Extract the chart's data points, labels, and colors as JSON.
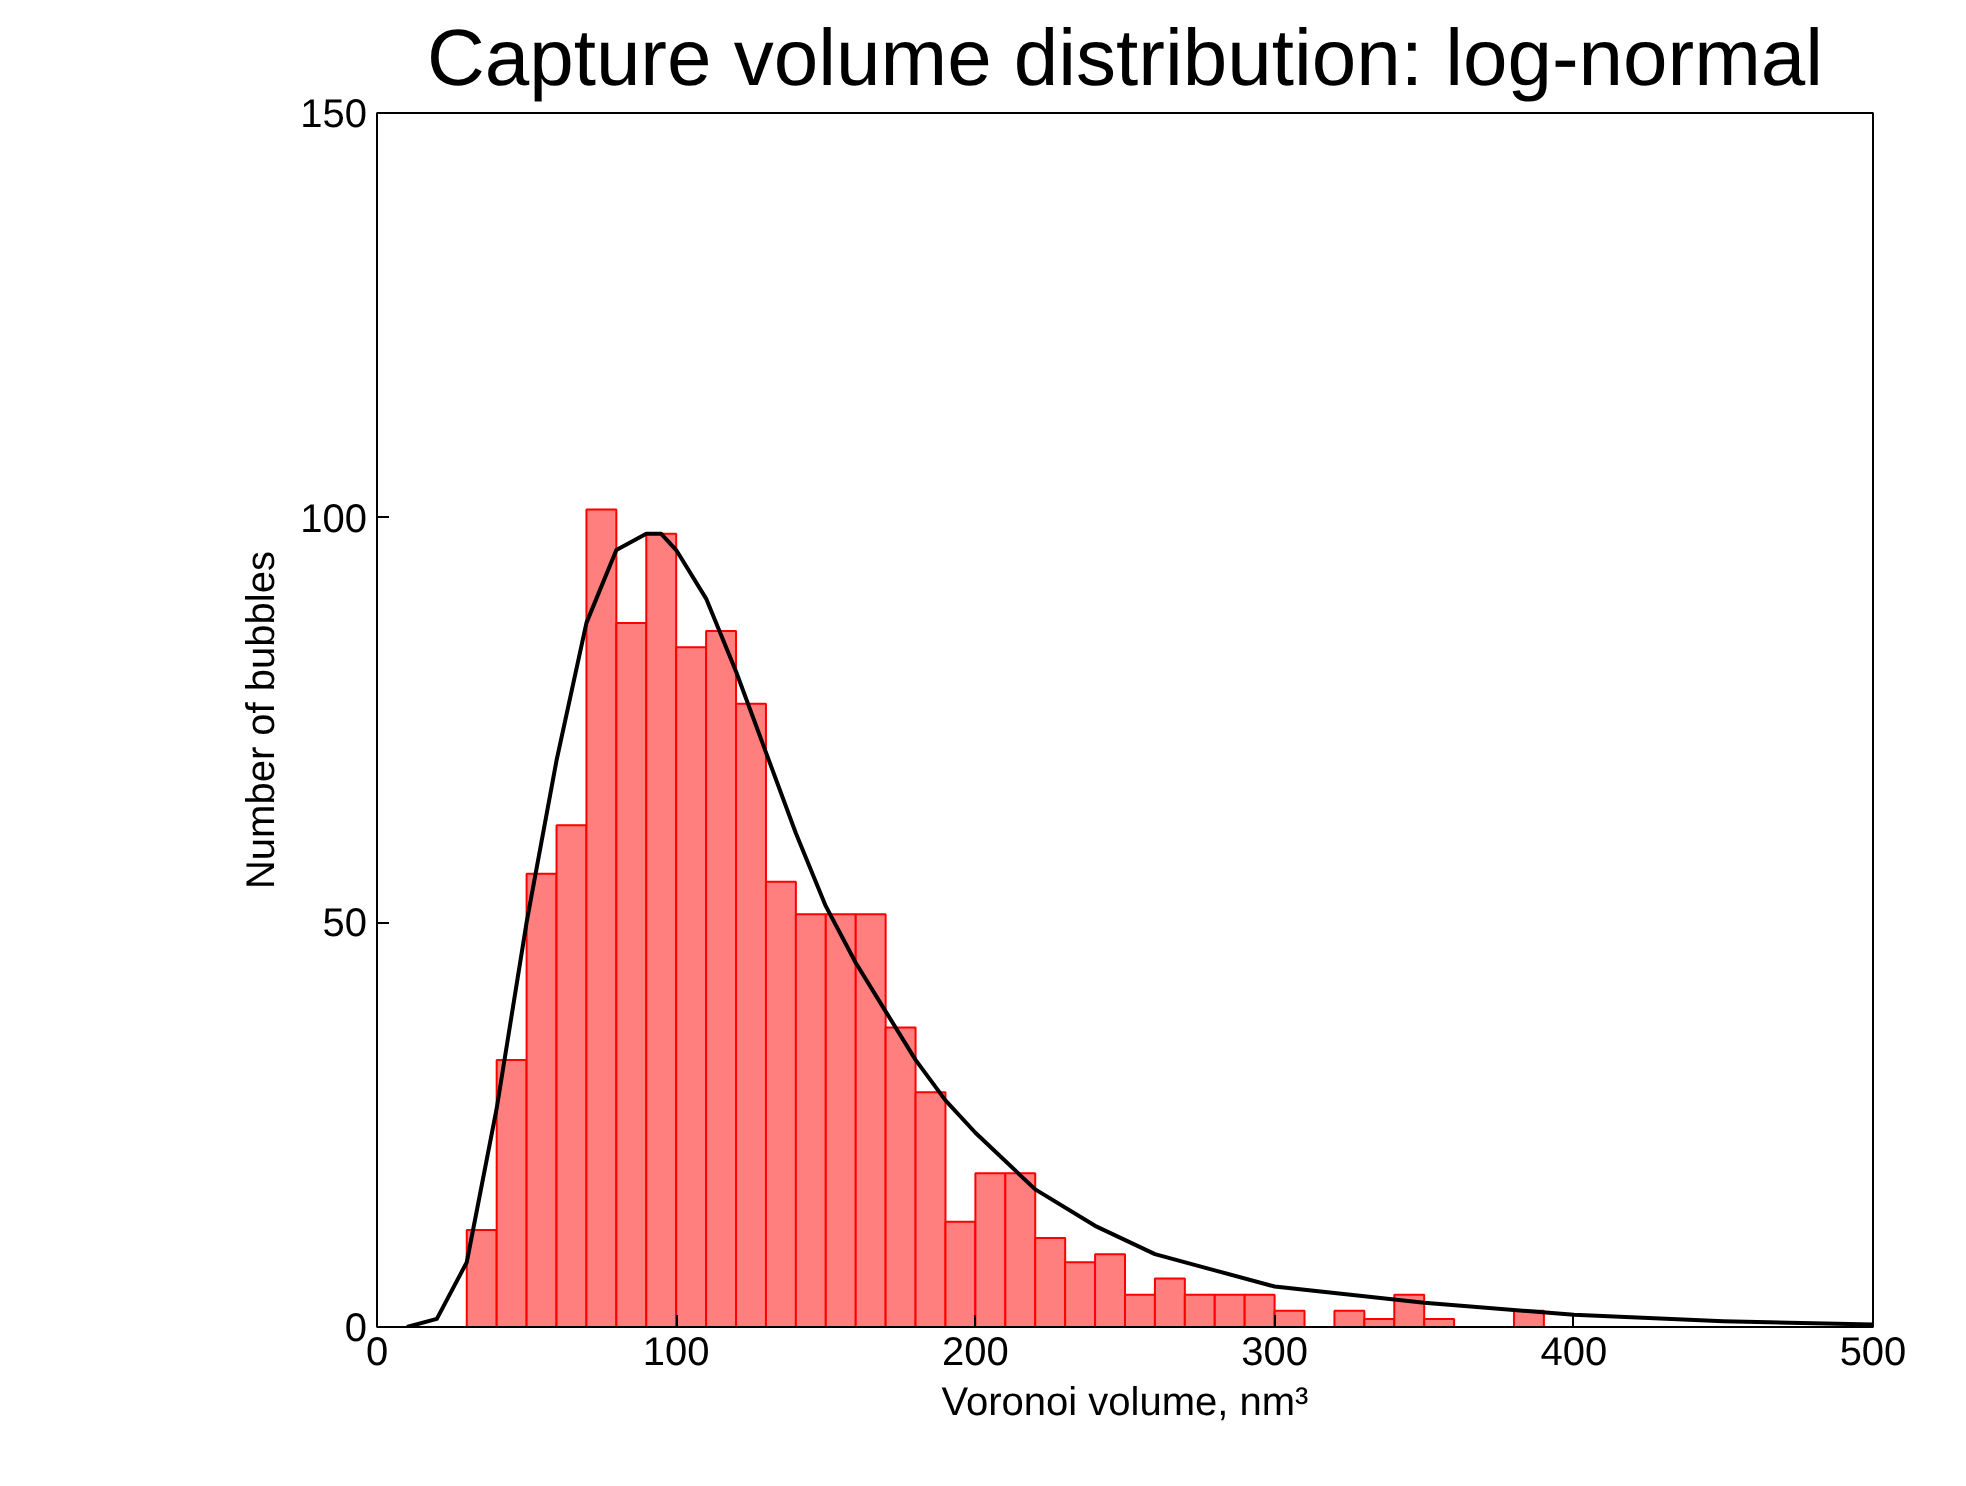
{
  "chart_data": {
    "type": "histogram",
    "title": "Capture volume distribution: log-normal",
    "xlabel": "Voronoi volume, nm³",
    "ylabel": "Number of bubbles",
    "bins": [
      30,
      40,
      50,
      60,
      70,
      80,
      90,
      100,
      110,
      120,
      130,
      140,
      150,
      160,
      170,
      180,
      190,
      200,
      210,
      220,
      230,
      240,
      250,
      260,
      270,
      280,
      290,
      300,
      310,
      320,
      330,
      340,
      350,
      360,
      370,
      380,
      390
    ],
    "values": [
      12,
      33,
      56,
      62,
      101,
      87,
      98,
      84,
      86,
      77,
      55,
      51,
      51,
      51,
      37,
      29,
      13,
      19,
      19,
      11,
      8,
      9,
      4,
      6,
      4,
      4,
      4,
      2,
      0,
      2,
      1,
      4,
      1,
      0,
      0,
      2
    ],
    "color": "#ff7f7f",
    "series": [
      {
        "type": "line",
        "color": "#000000",
        "x": [
          10,
          20,
          30,
          40,
          50,
          60,
          70,
          80,
          90,
          95,
          100,
          110,
          120,
          130,
          140,
          150,
          160,
          170,
          180,
          190,
          200,
          220,
          240,
          260,
          280,
          300,
          350,
          400,
          450,
          500
        ],
        "values": [
          0,
          1,
          8,
          27,
          50,
          70,
          87,
          96,
          98,
          98,
          96,
          90,
          81,
          71,
          61,
          52,
          45,
          39,
          33,
          28,
          24,
          17,
          12.5,
          9,
          7,
          5,
          3,
          1.5,
          0.7,
          0.3
        ]
      }
    ],
    "xlim": [
      0,
      500
    ],
    "ylim": [
      0,
      150
    ],
    "xticks": [
      0,
      100,
      200,
      300,
      400,
      500
    ],
    "yticks": [
      0,
      50,
      100,
      150
    ],
    "grid": false
  }
}
